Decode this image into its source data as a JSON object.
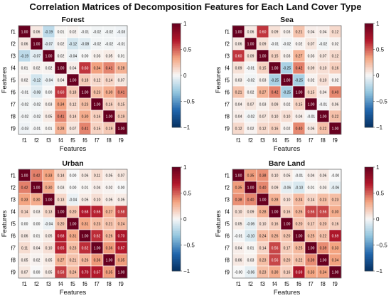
{
  "title": "Correlation Matrices of Decomposition Features for Each Land Cover Type",
  "colors": {
    "strong_negative": "#053061",
    "negative": "#2166ac",
    "weak_negative": "#92c5de",
    "neutral": "#f7f7f7",
    "weak_positive": "#f4a582",
    "positive": "#b2182b",
    "strong_positive": "#67001f"
  },
  "chart_data": [
    {
      "type": "heatmap",
      "title": "Forest",
      "xlabel": "Features",
      "ylabel": "Features",
      "labels": [
        "f1",
        "f2",
        "f3",
        "f4",
        "f5",
        "f6",
        "f7",
        "f8",
        "f9"
      ],
      "colorbar": {
        "ticks": [
          1,
          0.5,
          0,
          -0.5,
          -1
        ],
        "tick_labels": [
          "1",
          "0.5",
          "0",
          "−0.5",
          "−1"
        ],
        "range": [
          -1,
          1
        ]
      },
      "values": [
        [
          "1.00",
          "0.06",
          "-0.19",
          "0.01",
          "0.02",
          "-0.01",
          "-0.02",
          "-0.02",
          "-0.03"
        ],
        [
          "0.06",
          "1.00",
          "-0.07",
          "0.02",
          "-0.12",
          "-0.08",
          "-0.02",
          "-0.02",
          "-0.01"
        ],
        [
          "-0.19",
          "-0.07",
          "1.00",
          "0.02",
          "-0.04",
          "0.00",
          "0.03",
          "0.05",
          "0.01"
        ],
        [
          "0.01",
          "0.02",
          "0.02",
          "1.00",
          "0.04",
          "0.60",
          "0.34",
          "0.41",
          "0.28"
        ],
        [
          "0.02",
          "-0.12",
          "-0.04",
          "0.04",
          "1.00",
          "0.18",
          "0.12",
          "0.14",
          "0.07"
        ],
        [
          "-0.01",
          "-0.08",
          "0.00",
          "0.60",
          "0.18",
          "1.00",
          "0.23",
          "0.30",
          "0.41"
        ],
        [
          "-0.02",
          "-0.02",
          "0.03",
          "0.34",
          "0.12",
          "0.23",
          "1.00",
          "0.16",
          "0.15"
        ],
        [
          "-0.02",
          "-0.02",
          "0.05",
          "0.41",
          "0.14",
          "0.30",
          "0.16",
          "1.00",
          "0.19"
        ],
        [
          "-0.03",
          "-0.01",
          "0.01",
          "0.28",
          "0.07",
          "0.41",
          "0.15",
          "0.19",
          "1.00"
        ]
      ]
    },
    {
      "type": "heatmap",
      "title": "Sea",
      "xlabel": "Features",
      "ylabel": "Features",
      "labels": [
        "f1",
        "f2",
        "f3",
        "f4",
        "f5",
        "f6",
        "f7",
        "f8",
        "f9"
      ],
      "colorbar": {
        "ticks": [
          1,
          0.5,
          0,
          -0.5,
          -1
        ],
        "tick_labels": [
          "1",
          "0.5",
          "0",
          "−0.5",
          "−1"
        ],
        "range": [
          -1,
          1
        ]
      },
      "values": [
        [
          "1.00",
          "0.06",
          "0.60",
          "0.09",
          "0.03",
          "0.21",
          "0.04",
          "0.04",
          "0.12"
        ],
        [
          "0.06",
          "1.00",
          "0.09",
          "-0.01",
          "-0.02",
          "0.02",
          "0.07",
          "-0.02",
          "0.02"
        ],
        [
          "0.60",
          "0.09",
          "1.00",
          "0.15",
          "0.03",
          "0.27",
          "0.03",
          "0.07",
          "0.12"
        ],
        [
          "0.09",
          "-0.01",
          "0.15",
          "1.00",
          "-0.25",
          "0.42",
          "0.09",
          "0.10",
          "0.16"
        ],
        [
          "0.03",
          "-0.02",
          "0.03",
          "-0.25",
          "1.00",
          "-0.25",
          "0.02",
          "0.10",
          "0.02"
        ],
        [
          "0.21",
          "0.02",
          "0.27",
          "0.42",
          "-0.25",
          "1.00",
          "0.15",
          "0.04",
          "0.40"
        ],
        [
          "0.04",
          "0.07",
          "0.03",
          "0.09",
          "0.02",
          "0.15",
          "1.00",
          "-0.01",
          "0.06"
        ],
        [
          "0.04",
          "-0.02",
          "0.07",
          "0.10",
          "0.10",
          "0.04",
          "-0.01",
          "1.00",
          "0.22"
        ],
        [
          "0.12",
          "0.02",
          "0.12",
          "0.16",
          "0.02",
          "0.40",
          "0.06",
          "0.22",
          "1.00"
        ]
      ]
    },
    {
      "type": "heatmap",
      "title": "Urban",
      "xlabel": "Features",
      "ylabel": "Features",
      "labels": [
        "f1",
        "f2",
        "f3",
        "f4",
        "f5",
        "f6",
        "f7",
        "f8",
        "f9"
      ],
      "colorbar": {
        "ticks": [
          1,
          0.5,
          0,
          -0.5,
          -1
        ],
        "tick_labels": [
          "1",
          "0.5",
          "0",
          "−0.5",
          "−1"
        ],
        "range": [
          -1,
          1
        ]
      },
      "values": [
        [
          "1.00",
          "0.42",
          "0.33",
          "0.14",
          "0.00",
          "0.06",
          "0.11",
          "0.05",
          "0.07"
        ],
        [
          "0.42",
          "1.00",
          "0.30",
          "0.03",
          "0.00",
          "0.01",
          "0.04",
          "0.02",
          "0.00"
        ],
        [
          "0.33",
          "0.30",
          "1.00",
          "0.13",
          "-0.04",
          "0.05",
          "0.10",
          "0.05",
          "0.05"
        ],
        [
          "0.14",
          "0.03",
          "0.13",
          "1.00",
          "0.20",
          "0.68",
          "0.65",
          "0.27",
          "0.58"
        ],
        [
          "0.00",
          "0.00",
          "-0.04",
          "0.20",
          "1.00",
          "0.31",
          "0.23",
          "0.21",
          "0.24"
        ],
        [
          "0.06",
          "0.01",
          "0.05",
          "0.68",
          "0.31",
          "1.00",
          "0.62",
          "0.26",
          "0.70"
        ],
        [
          "0.11",
          "0.04",
          "0.10",
          "0.65",
          "0.23",
          "0.62",
          "1.00",
          "0.36",
          "0.67"
        ],
        [
          "0.05",
          "0.02",
          "0.05",
          "0.27",
          "0.21",
          "0.26",
          "0.36",
          "1.00",
          "0.35"
        ],
        [
          "0.07",
          "0.00",
          "0.05",
          "0.58",
          "0.24",
          "0.70",
          "0.67",
          "0.35",
          "1.00"
        ]
      ]
    },
    {
      "type": "heatmap",
      "title": "Bare Land",
      "xlabel": "Features",
      "ylabel": "Features",
      "labels": [
        "f1",
        "f2",
        "f3",
        "f4",
        "f5",
        "f6",
        "f7",
        "f8",
        "f9"
      ],
      "colorbar": {
        "ticks": [
          1,
          0.5,
          0,
          -0.5,
          -1
        ],
        "tick_labels": [
          "1",
          "0.5",
          "0",
          "−0.5",
          "−1"
        ],
        "range": [
          -1,
          1
        ]
      },
      "values": [
        [
          "1.00",
          "0.35",
          "0.38",
          "0.10",
          "0.05",
          "-0.01",
          "0.04",
          "0.06",
          "-0.00"
        ],
        [
          "0.35",
          "1.00",
          "0.40",
          "0.09",
          "-0.06",
          "-0.10",
          "0.01",
          "0.03",
          "-0.06"
        ],
        [
          "0.38",
          "0.40",
          "1.00",
          "0.28",
          "0.10",
          "0.24",
          "0.14",
          "0.23",
          "0.23"
        ],
        [
          "0.10",
          "0.09",
          "0.28",
          "1.00",
          "0.16",
          "0.26",
          "0.56",
          "0.56",
          "0.30"
        ],
        [
          "0.05",
          "-0.06",
          "0.10",
          "0.16",
          "1.00",
          "0.20",
          "0.17",
          "0.20",
          "0.16"
        ],
        [
          "-0.01",
          "-0.10",
          "0.24",
          "0.26",
          "0.20",
          "1.00",
          "0.25",
          "0.22",
          "0.69"
        ],
        [
          "0.04",
          "0.01",
          "0.14",
          "0.56",
          "0.17",
          "0.25",
          "1.00",
          "0.39",
          "0.33"
        ],
        [
          "0.06",
          "0.03",
          "0.23",
          "0.56",
          "0.20",
          "0.22",
          "0.39",
          "1.00",
          "0.34"
        ],
        [
          "-0.00",
          "-0.06",
          "0.23",
          "0.30",
          "0.16",
          "0.69",
          "0.33",
          "0.34",
          "1.00"
        ]
      ]
    }
  ]
}
